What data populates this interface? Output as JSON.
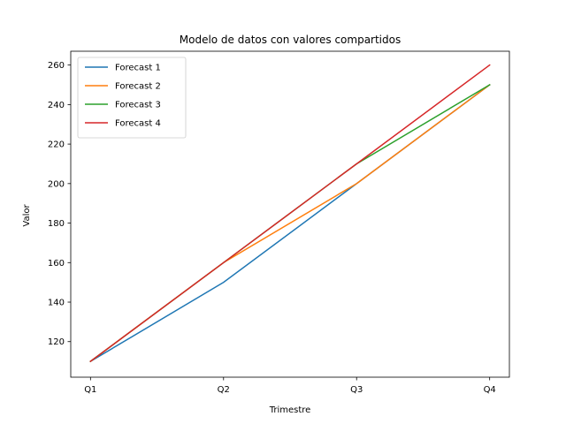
{
  "chart_data": {
    "type": "line",
    "title": "Modelo de datos con valores compartidos",
    "xlabel": "Trimestre",
    "ylabel": "Valor",
    "categories": [
      "Q1",
      "Q2",
      "Q3",
      "Q4"
    ],
    "ylim": [
      102,
      267
    ],
    "yticks": [
      120,
      140,
      160,
      180,
      200,
      220,
      240,
      260
    ],
    "grid": false,
    "legend_position": "top-left",
    "series": [
      {
        "name": "Forecast 1",
        "color": "#1f77b4",
        "values": [
          110,
          150,
          200,
          250
        ]
      },
      {
        "name": "Forecast 2",
        "color": "#ff7f0e",
        "values": [
          110,
          160,
          200,
          250
        ]
      },
      {
        "name": "Forecast 3",
        "color": "#2ca02c",
        "values": [
          110,
          160,
          210,
          250
        ]
      },
      {
        "name": "Forecast 4",
        "color": "#d62728",
        "values": [
          110,
          160,
          210,
          260
        ]
      }
    ]
  }
}
